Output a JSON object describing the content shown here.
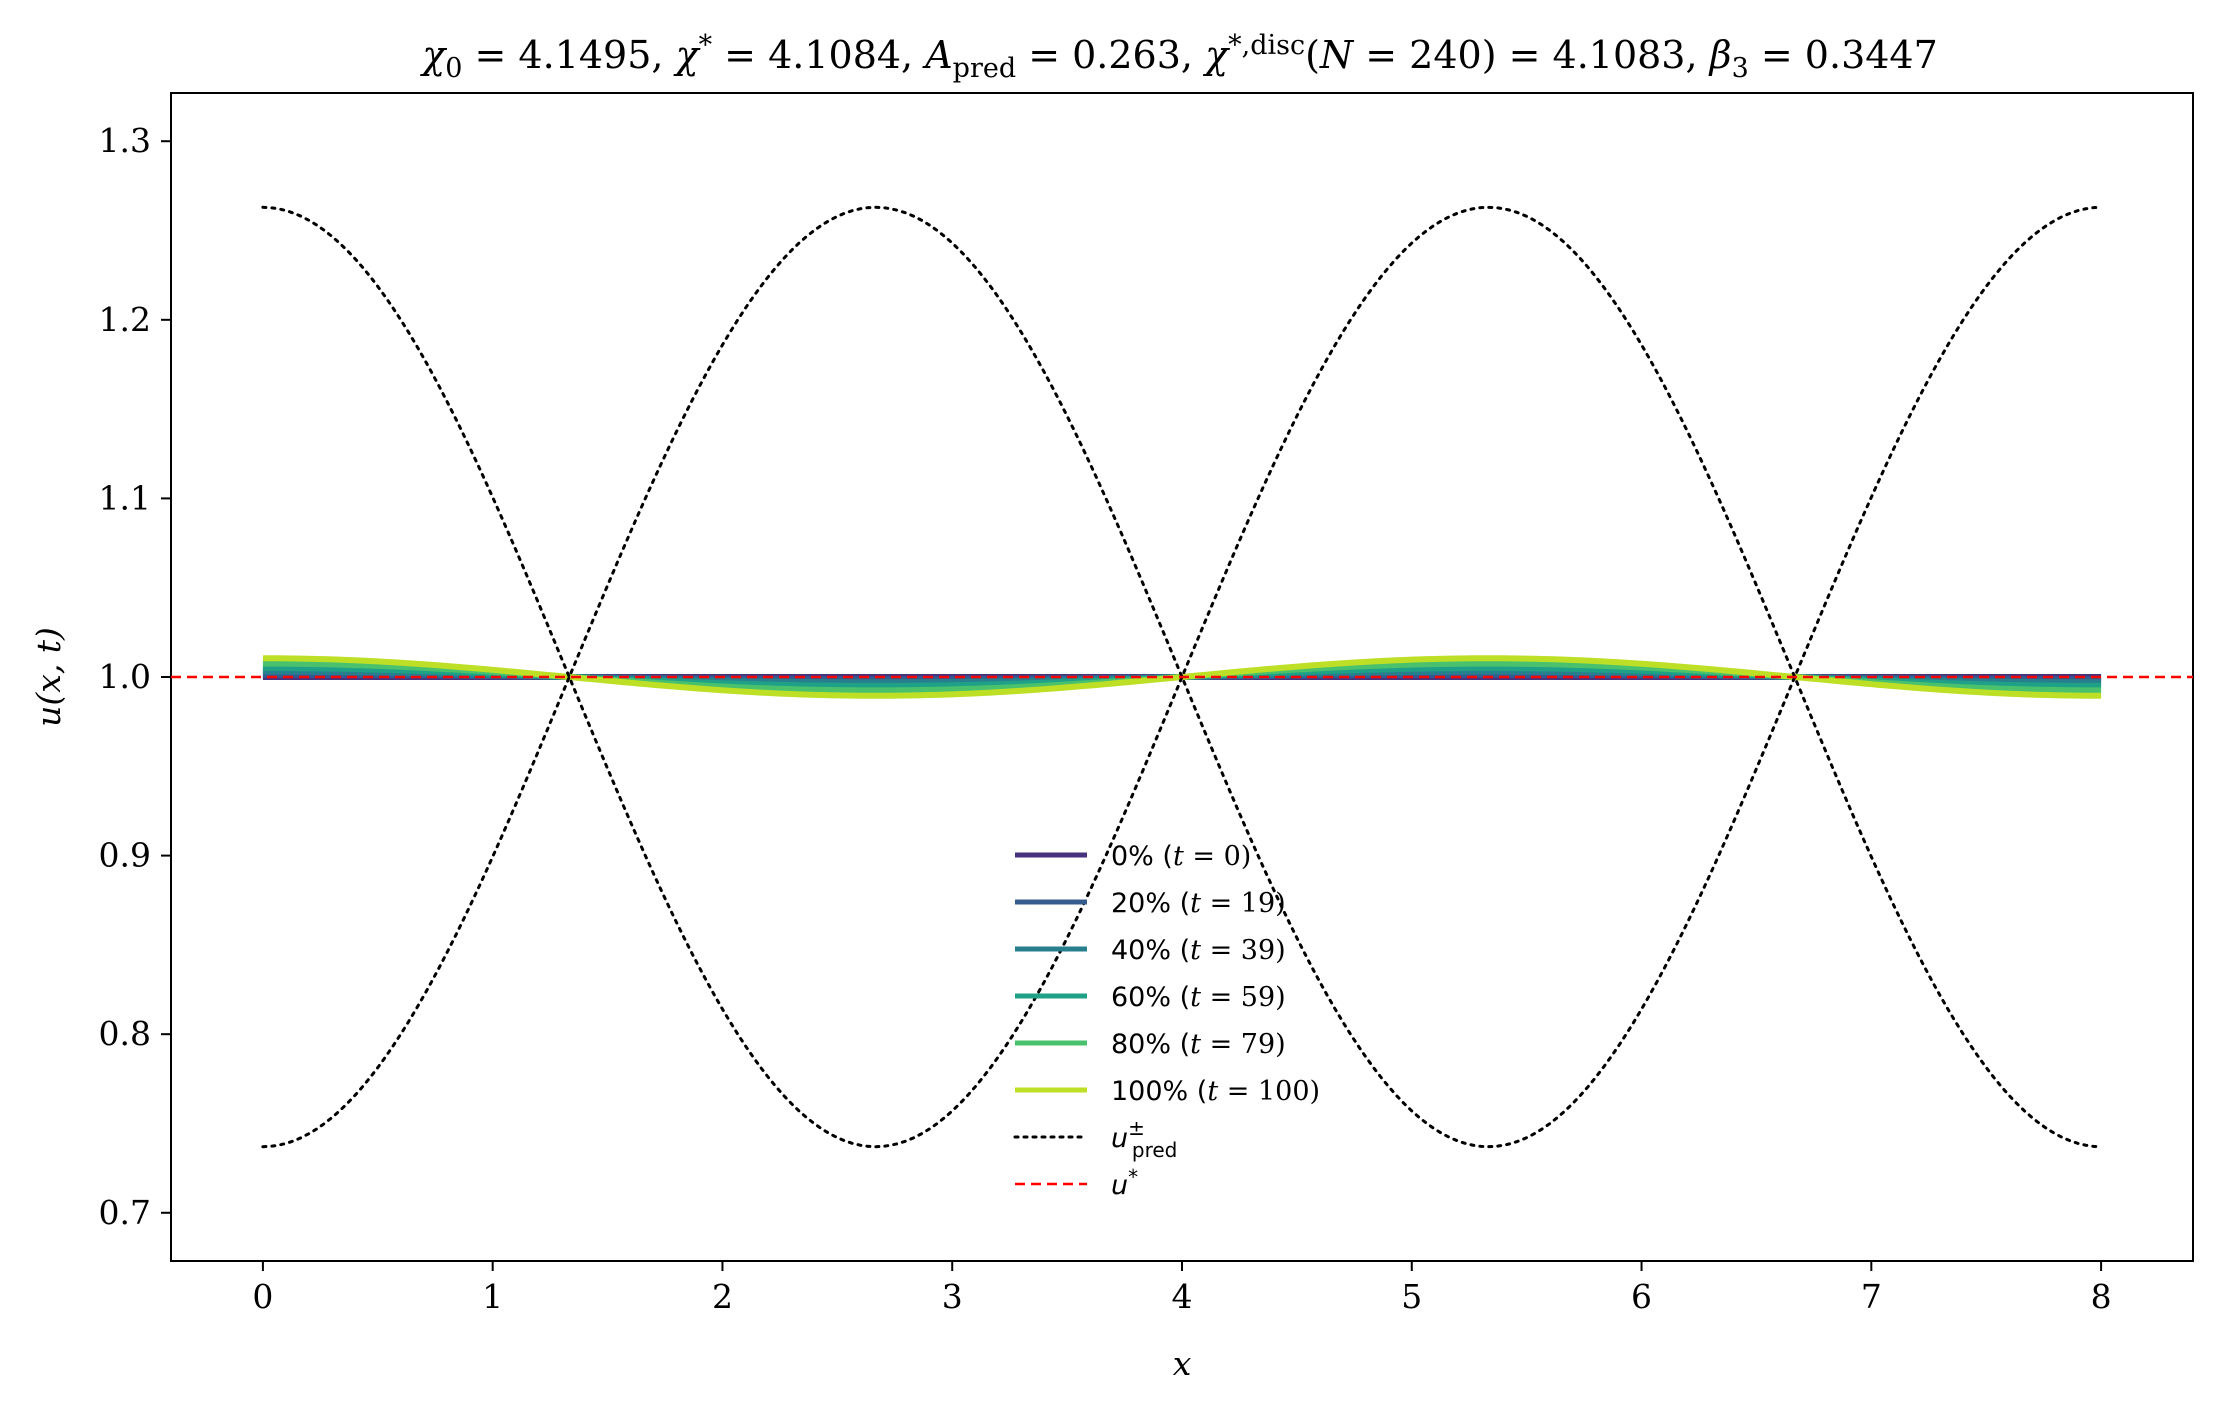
{
  "chart_data": {
    "type": "line",
    "title": "χ₀ = 4.1495,  χ* = 4.1084,  A_pred = 0.263,  χ*,disc(N = 240) = 4.1083,  β₃ = 0.3447",
    "xlabel": "x",
    "ylabel": "u(x, t)",
    "xlim": [
      -0.4,
      8.4
    ],
    "ylim": [
      0.673,
      1.327
    ],
    "x_ticks": [
      "0",
      "1",
      "2",
      "3",
      "4",
      "5",
      "6",
      "7",
      "8"
    ],
    "y_ticks": [
      "0.7",
      "0.8",
      "0.9",
      "1.0",
      "1.1",
      "1.2",
      "1.3"
    ],
    "grid": false,
    "legend_position": "lower-center",
    "x_range": [
      0,
      8
    ],
    "series": [
      {
        "name": "0% (t = 0)",
        "color": "#46327e",
        "style": "solid",
        "form": "u* + a·cos(3πx/8)",
        "a": 0.0
      },
      {
        "name": "20% (t = 19)",
        "color": "#365c8d",
        "style": "solid",
        "form": "u* + a·cos(3πx/8)",
        "a": 0.0013
      },
      {
        "name": "40% (t = 39)",
        "color": "#277f8e",
        "style": "solid",
        "form": "u* + a·cos(3πx/8)",
        "a": 0.003
      },
      {
        "name": "60% (t = 59)",
        "color": "#1fa187",
        "style": "solid",
        "form": "u* + a·cos(3πx/8)",
        "a": 0.005
      },
      {
        "name": "80% (t = 79)",
        "color": "#4ac16d",
        "style": "solid",
        "form": "u* + a·cos(3πx/8)",
        "a": 0.0075
      },
      {
        "name": "100% (t = 100)",
        "color": "#bddf26",
        "style": "solid",
        "form": "u* + a·cos(3πx/8)",
        "a": 0.0105
      },
      {
        "name": "u±pred",
        "color": "#000000",
        "style": "dotted",
        "form": "u* ± A_pred·cos(3πx/8)",
        "a": 0.263
      },
      {
        "name": "u*",
        "color": "#ff0000",
        "style": "dashed",
        "value": 1.0
      }
    ]
  }
}
